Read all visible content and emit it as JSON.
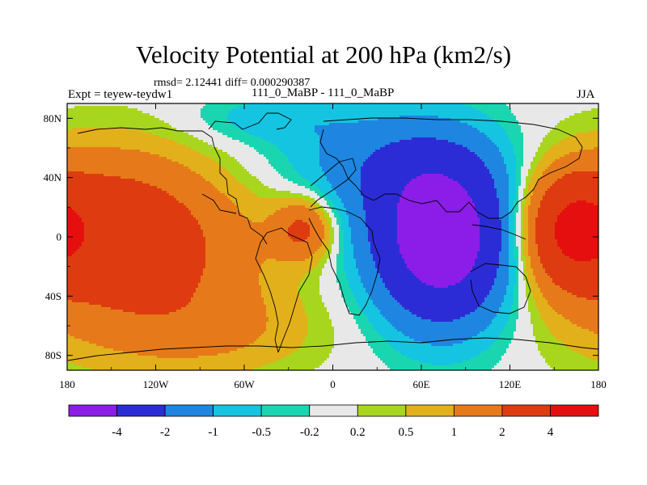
{
  "chart_data": {
    "type": "heatmap",
    "title": "Velocity Potential at 200 hPa (km2/s)",
    "stats_text": "rmsd= 2.12441 diff= 0.000290387",
    "left_label": "Expt = teyew-teydw1",
    "center_label": "111_0_MaBP - 111_0_MaBP",
    "right_label": "JJA",
    "xlim": [
      -180,
      180
    ],
    "ylim": [
      -90,
      90
    ],
    "x_ticks": [
      {
        "value": -180,
        "label": "180"
      },
      {
        "value": -120,
        "label": "120W"
      },
      {
        "value": -60,
        "label": "60W"
      },
      {
        "value": 0,
        "label": "0"
      },
      {
        "value": 60,
        "label": "60E"
      },
      {
        "value": 120,
        "label": "120E"
      },
      {
        "value": 180,
        "label": "180"
      }
    ],
    "y_ticks": [
      {
        "value": 80,
        "label": "80N"
      },
      {
        "value": 40,
        "label": "40N"
      },
      {
        "value": 0,
        "label": "0"
      },
      {
        "value": -40,
        "label": "40S"
      },
      {
        "value": -80,
        "label": "80S"
      }
    ],
    "levels": [
      "-4",
      "-2",
      "-1",
      "-0.5",
      "-0.2",
      "0.2",
      "0.5",
      "1",
      "2",
      "4"
    ],
    "colors": [
      "#8c1de8",
      "#2c2cd6",
      "#1e86e0",
      "#15c4e0",
      "#1ad6b0",
      "#e8e8e8",
      "#a8d61e",
      "#e2b01a",
      "#e67a1a",
      "#de3c10",
      "#e60f0f"
    ],
    "field_description": "Velocity potential anomaly (km2/s): strong negative center over the Indian Ocean/Eurasia near 60-90E; positive centers over the central-east Pacific (~150W, 10S) and western Pacific (~150E, 0)."
  }
}
